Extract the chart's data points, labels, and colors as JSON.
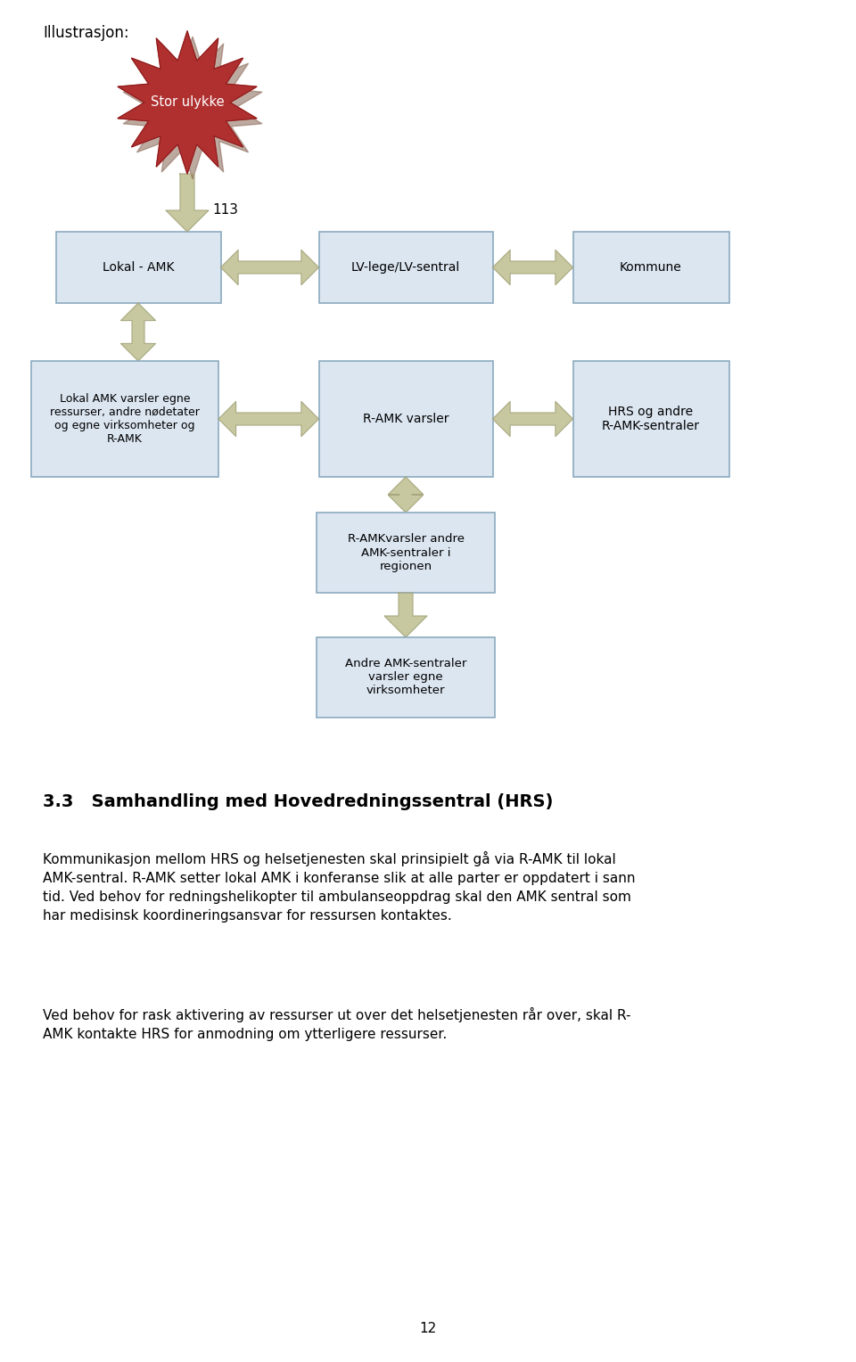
{
  "title_label": "Illustrasjon:",
  "page_number": "12",
  "box_fill": "#dce6f1",
  "box_edge": "#8baabf",
  "arrow_color": "#c8c8a0",
  "arrow_edge": "#a8a880",
  "star_fill": "#b03030",
  "star_shadow": "#907060",
  "section_title": "3.3   Samhandling med Hovedredningssentral (HRS)",
  "paragraph1": "Kommunikasjon mellom HRS og helsetjenesten skal prinsipielt gå via R-AMK til lokal\nAMK-sentral. R-AMK setter lokal AMK i konferanse slik at alle parter er oppdatert i sann\ntid. Ved behov for redningshelikopter til ambulanseoppdrag skal den AMK sentral som\nhar medisinsk koordineringsansvar for ressursen kontaktes.",
  "paragraph2": "Ved behov for rask aktivering av ressurser ut over det helsetjenesten rår over, skal R-\nAMK kontakte HRS for anmodning om ytterligere ressurser.",
  "label_113": "113",
  "fig_w": 9.6,
  "fig_h": 15.28,
  "dpi": 100
}
